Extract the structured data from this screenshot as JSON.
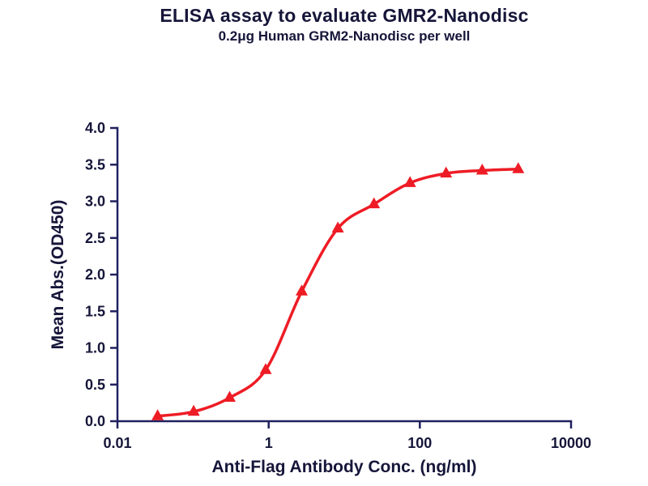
{
  "chart_data": {
    "type": "scatter",
    "title": "ELISA assay to evaluate GMR2-Nanodisc",
    "subtitle": "0.2μg Human GRM2-Nanodisc per well",
    "xlabel": "Anti-Flag Antibody Conc. (ng/ml)",
    "ylabel": "Mean Abs.(OD450)",
    "x_scale": "log10",
    "xlim": [
      0.01,
      10000
    ],
    "ylim": [
      0.0,
      4.0
    ],
    "x_ticks": [
      0.01,
      1,
      100,
      10000
    ],
    "x_tick_labels": [
      "0.01",
      "1",
      "100",
      "10000"
    ],
    "y_ticks": [
      0.0,
      0.5,
      1.0,
      1.5,
      2.0,
      2.5,
      3.0,
      3.5,
      4.0
    ],
    "y_tick_labels": [
      "0.0",
      "0.5",
      "1.0",
      "1.5",
      "2.0",
      "2.5",
      "3.0",
      "3.5",
      "4.0"
    ],
    "grid": false,
    "legend": false,
    "series": [
      {
        "name": "Human GRM2-Nanodisc",
        "marker": "triangle-up",
        "line": "sigmoid-fit",
        "x": [
          0.034,
          0.102,
          0.305,
          0.914,
          2.74,
          8.23,
          24.7,
          74.1,
          222,
          667,
          2000
        ],
        "y": [
          0.07,
          0.13,
          0.32,
          0.7,
          1.77,
          2.63,
          2.96,
          3.25,
          3.38,
          3.42,
          3.44
        ]
      }
    ],
    "colors": {
      "curve": "#ee1c25",
      "marker": "#ee1c25",
      "axis": "#20205f",
      "text": "#16163a"
    }
  }
}
